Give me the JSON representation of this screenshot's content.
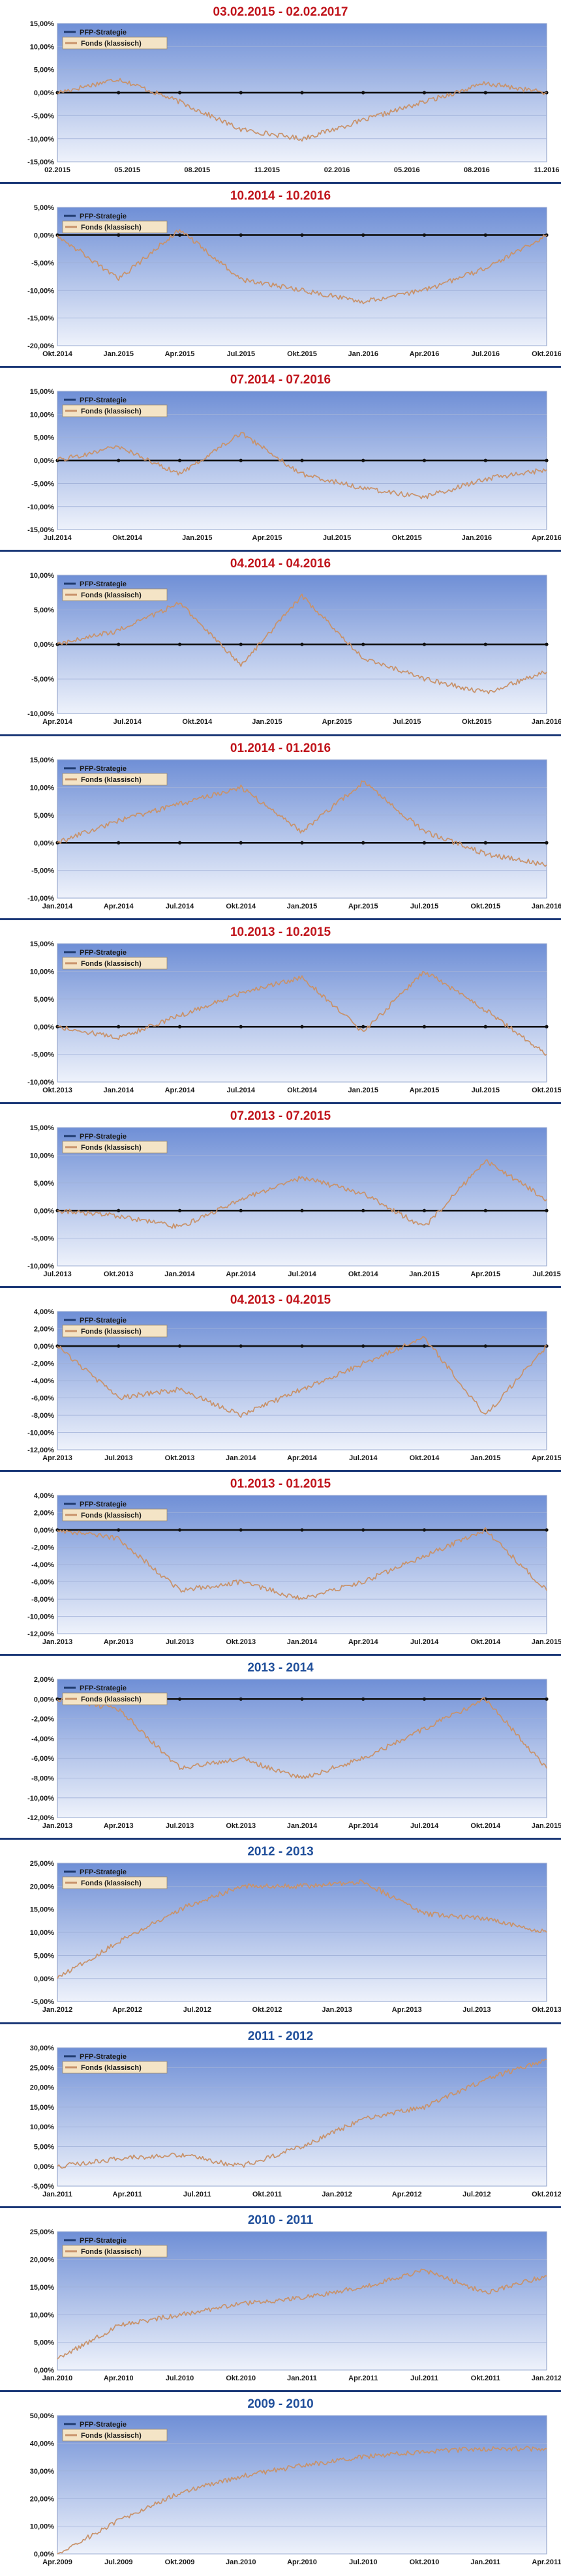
{
  "legend_labels": {
    "strategy": "PFP-Strategie",
    "fund": "Fonds (klassisch)"
  },
  "colors": {
    "strategy": "#1f3a6e",
    "fund": "#c8926a",
    "bg_top": "#6f8fd6",
    "bg_bottom": "#eef2fb",
    "title_red": "#c0141b",
    "title_blue": "#1f4e9a",
    "separator": "#1d3a78"
  },
  "chart_data": [
    {
      "type": "line",
      "title": "03.02.2015 - 02.02.2017",
      "title_color": "red",
      "x_ticks": [
        "02.2015",
        "05.2015",
        "08.2015",
        "11.2015",
        "02.2016",
        "05.2016",
        "08.2016",
        "11.2016"
      ],
      "y_ticks": [
        "15,00%",
        "10,00%",
        "5,00%",
        "0,00%",
        "-5,00%",
        "-10,00%",
        "-15,00%"
      ],
      "ylim": [
        -15,
        15
      ],
      "grid": true,
      "legend_position": "top-left",
      "series": [
        {
          "name": "PFP-Strategie",
          "values": [
            0,
            0,
            0,
            0,
            0,
            0,
            0,
            0,
            0
          ]
        },
        {
          "name": "Fonds (klassisch)",
          "values": [
            0,
            3,
            -2,
            -8,
            -10,
            -6,
            -2,
            2,
            0
          ]
        }
      ]
    },
    {
      "type": "line",
      "title": "10.2014 - 10.2016",
      "title_color": "red",
      "x_ticks": [
        "Okt.2014",
        "Jan.2015",
        "Apr.2015",
        "Jul.2015",
        "Okt.2015",
        "Jan.2016",
        "Apr.2016",
        "Jul.2016",
        "Okt.2016"
      ],
      "y_ticks": [
        "5,00%",
        "0,00%",
        "-5,00%",
        "-10,00%",
        "-15,00%",
        "-20,00%"
      ],
      "ylim": [
        -20,
        5
      ],
      "grid": true,
      "legend_position": "top-left",
      "series": [
        {
          "name": "PFP-Strategie",
          "values": [
            0,
            0,
            0,
            0,
            0,
            0,
            0,
            0,
            0
          ]
        },
        {
          "name": "Fonds (klassisch)",
          "values": [
            0,
            -8,
            1,
            -8,
            -10,
            -12,
            -10,
            -6,
            0
          ]
        }
      ]
    },
    {
      "type": "line",
      "title": "07.2014 - 07.2016",
      "title_color": "red",
      "x_ticks": [
        "Jul.2014",
        "Okt.2014",
        "Jan.2015",
        "Apr.2015",
        "Jul.2015",
        "Okt.2015",
        "Jan.2016",
        "Apr.2016"
      ],
      "y_ticks": [
        "15,00%",
        "10,00%",
        "5,00%",
        "0,00%",
        "-5,00%",
        "-10,00%",
        "-15,00%"
      ],
      "ylim": [
        -15,
        15
      ],
      "grid": true,
      "legend_position": "top-left",
      "series": [
        {
          "name": "PFP-Strategie",
          "values": [
            0,
            0,
            0,
            0,
            0,
            0,
            0,
            0,
            0
          ]
        },
        {
          "name": "Fonds (klassisch)",
          "values": [
            0,
            3,
            -3,
            6,
            -3,
            -6,
            -8,
            -4,
            -2
          ]
        }
      ]
    },
    {
      "type": "line",
      "title": "04.2014 - 04.2016",
      "title_color": "red",
      "x_ticks": [
        "Apr.2014",
        "Jul.2014",
        "Okt.2014",
        "Jan.2015",
        "Apr.2015",
        "Jul.2015",
        "Okt.2015",
        "Jan.2016"
      ],
      "y_ticks": [
        "10,00%",
        "5,00%",
        "0,00%",
        "-5,00%",
        "-10,00%"
      ],
      "ylim": [
        -10,
        10
      ],
      "grid": true,
      "legend_position": "top-left",
      "series": [
        {
          "name": "PFP-Strategie",
          "values": [
            0,
            0,
            0,
            0,
            0,
            0,
            0,
            0,
            0
          ]
        },
        {
          "name": "Fonds (klassisch)",
          "values": [
            0,
            2,
            6,
            -3,
            7,
            -2,
            -5,
            -7,
            -4
          ]
        }
      ]
    },
    {
      "type": "line",
      "title": "01.2014 - 01.2016",
      "title_color": "red",
      "x_ticks": [
        "Jan.2014",
        "Apr.2014",
        "Jul.2014",
        "Okt.2014",
        "Jan.2015",
        "Apr.2015",
        "Jul.2015",
        "Okt.2015",
        "Jan.2016"
      ],
      "y_ticks": [
        "15,00%",
        "10,00%",
        "5,00%",
        "0,00%",
        "-5,00%",
        "-10,00%"
      ],
      "ylim": [
        -10,
        15
      ],
      "grid": true,
      "legend_position": "top-left",
      "series": [
        {
          "name": "PFP-Strategie",
          "values": [
            0,
            0,
            0,
            0,
            0,
            0,
            0,
            0,
            0
          ]
        },
        {
          "name": "Fonds (klassisch)",
          "values": [
            0,
            4,
            7,
            10,
            2,
            11,
            2,
            -2,
            -4
          ]
        }
      ]
    },
    {
      "type": "line",
      "title": "10.2013 - 10.2015",
      "title_color": "red",
      "x_ticks": [
        "Okt.2013",
        "Jan.2014",
        "Apr.2014",
        "Jul.2014",
        "Okt.2014",
        "Jan.2015",
        "Apr.2015",
        "Jul.2015",
        "Okt.2015"
      ],
      "y_ticks": [
        "15,00%",
        "10,00%",
        "5,00%",
        "0,00%",
        "-5,00%",
        "-10,00%"
      ],
      "ylim": [
        -10,
        15
      ],
      "grid": true,
      "legend_position": "top-left",
      "series": [
        {
          "name": "PFP-Strategie",
          "values": [
            0,
            0,
            0,
            0,
            0,
            0,
            0,
            0,
            0
          ]
        },
        {
          "name": "Fonds (klassisch)",
          "values": [
            0,
            -2,
            2,
            6,
            9,
            -1,
            10,
            3,
            -5
          ]
        }
      ]
    },
    {
      "type": "line",
      "title": "07.2013 - 07.2015",
      "title_color": "red",
      "x_ticks": [
        "Jul.2013",
        "Okt.2013",
        "Jan.2014",
        "Apr.2014",
        "Jul.2014",
        "Okt.2014",
        "Jan.2015",
        "Apr.2015",
        "Jul.2015"
      ],
      "y_ticks": [
        "15,00%",
        "10,00%",
        "5,00%",
        "0,00%",
        "-5,00%",
        "-10,00%"
      ],
      "ylim": [
        -10,
        15
      ],
      "grid": true,
      "legend_position": "top-left",
      "series": [
        {
          "name": "PFP-Strategie",
          "values": [
            0,
            0,
            0,
            0,
            0,
            0,
            0,
            0,
            0
          ]
        },
        {
          "name": "Fonds (klassisch)",
          "values": [
            0,
            -1,
            -3,
            2,
            6,
            3,
            -3,
            9,
            2
          ]
        }
      ]
    },
    {
      "type": "line",
      "title": "04.2013 - 04.2015",
      "title_color": "red",
      "x_ticks": [
        "Apr.2013",
        "Jul.2013",
        "Okt.2013",
        "Jan.2014",
        "Apr.2014",
        "Jul.2014",
        "Okt.2014",
        "Jan.2015",
        "Apr.2015"
      ],
      "y_ticks": [
        "4,00%",
        "2,00%",
        "0,00%",
        "-2,00%",
        "-4,00%",
        "-6,00%",
        "-8,00%",
        "-10,00%",
        "-12,00%"
      ],
      "ylim": [
        -12,
        4
      ],
      "grid": true,
      "legend_position": "top-left",
      "series": [
        {
          "name": "PFP-Strategie",
          "values": [
            0,
            0,
            0,
            0,
            0,
            0,
            0,
            0,
            0
          ]
        },
        {
          "name": "Fonds (klassisch)",
          "values": [
            0,
            -6,
            -5,
            -8,
            -5,
            -2,
            1,
            -8,
            0
          ]
        }
      ]
    },
    {
      "type": "line",
      "title": "01.2013 - 01.2015",
      "title_color": "red",
      "x_ticks": [
        "Jan.2013",
        "Apr.2013",
        "Jul.2013",
        "Okt.2013",
        "Jan.2014",
        "Apr.2014",
        "Jul.2014",
        "Okt.2014",
        "Jan.2015"
      ],
      "y_ticks": [
        "4,00%",
        "2,00%",
        "0,00%",
        "-2,00%",
        "-4,00%",
        "-6,00%",
        "-8,00%",
        "-10,00%",
        "-12,00%"
      ],
      "ylim": [
        -12,
        4
      ],
      "grid": true,
      "legend_position": "top-left",
      "series": [
        {
          "name": "PFP-Strategie",
          "values": [
            0,
            0,
            0,
            0,
            0,
            0,
            0,
            0,
            0
          ]
        },
        {
          "name": "Fonds (klassisch)",
          "values": [
            0,
            -1,
            -7,
            -6,
            -8,
            -6,
            -3,
            0,
            -7
          ]
        }
      ]
    },
    {
      "type": "line",
      "title": "2013 - 2014",
      "title_color": "blue",
      "x_ticks": [
        "Jan.2013",
        "Apr.2013",
        "Jul.2013",
        "Okt.2013",
        "Jan.2014",
        "Apr.2014",
        "Jul.2014",
        "Okt.2014",
        "Jan.2015"
      ],
      "y_ticks": [
        "2,00%",
        "0,00%",
        "-2,00%",
        "-4,00%",
        "-6,00%",
        "-8,00%",
        "-10,00%",
        "-12,00%"
      ],
      "ylim": [
        -12,
        2
      ],
      "grid": true,
      "legend_position": "top-left",
      "series": [
        {
          "name": "PFP-Strategie",
          "values": [
            0,
            0,
            0,
            0,
            0,
            0,
            0,
            0,
            0
          ]
        },
        {
          "name": "Fonds (klassisch)",
          "values": [
            0,
            -1,
            -7,
            -6,
            -8,
            -6,
            -3,
            0,
            -7
          ]
        }
      ]
    },
    {
      "type": "line",
      "title": "2012 - 2013",
      "title_color": "blue",
      "x_ticks": [
        "Jan.2012",
        "Apr.2012",
        "Jul.2012",
        "Okt.2012",
        "Jan.2013",
        "Apr.2013",
        "Jul.2013",
        "Okt.2013"
      ],
      "y_ticks": [
        "25,00%",
        "20,00%",
        "15,00%",
        "10,00%",
        "5,00%",
        "0,00%",
        "-5,00%"
      ],
      "ylim": [
        -5,
        25
      ],
      "grid": true,
      "legend_position": "top-left",
      "series": [
        {
          "name": "PFP-Strategie",
          "values": []
        },
        {
          "name": "Fonds (klassisch)",
          "values": [
            0,
            8,
            15,
            20,
            20,
            21,
            14,
            13,
            10
          ]
        }
      ]
    },
    {
      "type": "line",
      "title": "2011 - 2012",
      "title_color": "blue",
      "x_ticks": [
        "Jan.2011",
        "Apr.2011",
        "Jul.2011",
        "Okt.2011",
        "Jan.2012",
        "Apr.2012",
        "Jul.2012",
        "Okt.2012"
      ],
      "y_ticks": [
        "30,00%",
        "25,00%",
        "20,00%",
        "15,00%",
        "10,00%",
        "5,00%",
        "0,00%",
        "-5,00%"
      ],
      "ylim": [
        -5,
        30
      ],
      "grid": true,
      "legend_position": "top-left",
      "series": [
        {
          "name": "PFP-Strategie",
          "values": []
        },
        {
          "name": "Fonds (klassisch)",
          "values": [
            0,
            2,
            3,
            0,
            5,
            12,
            15,
            22,
            27
          ]
        }
      ]
    },
    {
      "type": "line",
      "title": "2010 - 2011",
      "title_color": "blue",
      "x_ticks": [
        "Jan.2010",
        "Apr.2010",
        "Jul.2010",
        "Okt.2010",
        "Jan.2011",
        "Apr.2011",
        "Jul.2011",
        "Okt.2011",
        "Jan.2012"
      ],
      "y_ticks": [
        "25,00%",
        "20,00%",
        "15,00%",
        "10,00%",
        "5,00%",
        "0,00%"
      ],
      "ylim": [
        0,
        25
      ],
      "grid": true,
      "legend_position": "top-left",
      "series": [
        {
          "name": "PFP-Strategie",
          "values": []
        },
        {
          "name": "Fonds (klassisch)",
          "values": [
            2,
            8,
            10,
            12,
            13,
            15,
            18,
            14,
            17
          ]
        }
      ]
    },
    {
      "type": "line",
      "title": "2009 - 2010",
      "title_color": "blue",
      "x_ticks": [
        "Apr.2009",
        "Jul.2009",
        "Okt.2009",
        "Jan.2010",
        "Apr.2010",
        "Jul.2010",
        "Okt.2010",
        "Jan.2011",
        "Apr.2011"
      ],
      "y_ticks": [
        "50,00%",
        "40,00%",
        "30,00%",
        "20,00%",
        "10,00%",
        "0,00%"
      ],
      "ylim": [
        0,
        50
      ],
      "grid": true,
      "legend_position": "top-left",
      "series": [
        {
          "name": "PFP-Strategie",
          "values": []
        },
        {
          "name": "Fonds (klassisch)",
          "values": [
            0,
            12,
            22,
            28,
            32,
            35,
            37,
            38,
            38
          ]
        }
      ]
    }
  ]
}
